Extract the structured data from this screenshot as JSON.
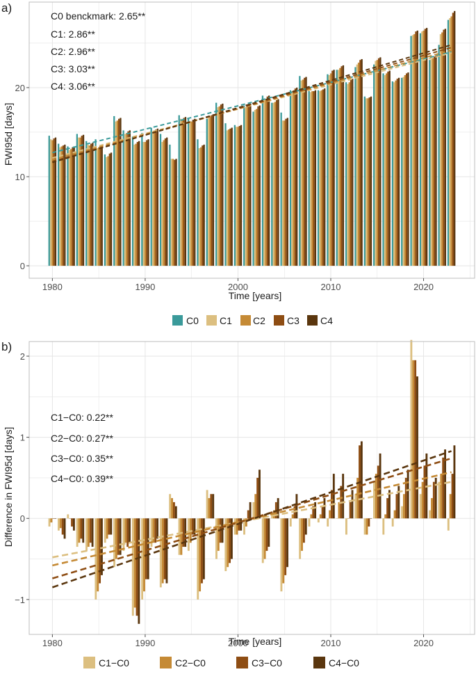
{
  "colors": {
    "C0": "#3a9a9a",
    "C1": "#dcbf80",
    "C2": "#c58a35",
    "C3": "#8e4d13",
    "C4": "#5a360e",
    "grid": "#e5e5e5",
    "frame": "#bdbdbd"
  },
  "chart_data": [
    {
      "panel": "a)",
      "type": "bar",
      "xlabel": "Time [years]",
      "ylabel": "FWI95d [days]",
      "xlim": [
        1977.5,
        2025.5
      ],
      "ylim": [
        -1.4,
        29.6
      ],
      "xticks": [
        1980,
        1990,
        2000,
        2010,
        2020
      ],
      "yticks": [
        0,
        10,
        20
      ],
      "x": [
        1980,
        1981,
        1982,
        1983,
        1984,
        1985,
        1986,
        1987,
        1988,
        1989,
        1990,
        1991,
        1992,
        1993,
        1994,
        1995,
        1996,
        1997,
        1998,
        1999,
        2000,
        2001,
        2002,
        2003,
        2004,
        2005,
        2006,
        2007,
        2008,
        2009,
        2010,
        2011,
        2012,
        2013,
        2014,
        2015,
        2016,
        2017,
        2018,
        2019,
        2020,
        2021,
        2022,
        2023
      ],
      "series": [
        {
          "name": "C0",
          "values": [
            14.6,
            13.7,
            13.4,
            14.8,
            14.0,
            14.2,
            12.5,
            16.8,
            15.2,
            14.5,
            14.9,
            15.5,
            14.8,
            13.6,
            16.9,
            16.5,
            14.2,
            16.5,
            18.3,
            16.0,
            15.8,
            18.0,
            17.3,
            19.1,
            18.3,
            17.2,
            19.7,
            21.3,
            19.6,
            19.7,
            21.5,
            22.0,
            20.6,
            22.3,
            19.0,
            22.6,
            21.6,
            20.7,
            21.1,
            25.8,
            26.1,
            23.1,
            24.8,
            27.6
          ]
        },
        {
          "name": "C1",
          "values": [
            14.2,
            13.3,
            13.0,
            14.4,
            13.6,
            13.2,
            12.2,
            16.2,
            14.8,
            13.6,
            13.9,
            15.1,
            13.9,
            12.0,
            16.5,
            16.1,
            13.2,
            16.6,
            17.8,
            15.2,
            15.6,
            17.8,
            17.5,
            18.6,
            18.3,
            16.3,
            19.6,
            20.8,
            19.5,
            19.6,
            21.4,
            22.0,
            20.4,
            22.6,
            18.8,
            23.0,
            21.4,
            20.6,
            21.2,
            25.9,
            26.3,
            23.2,
            26.0,
            27.8
          ]
        },
        {
          "name": "C2",
          "values": [
            14.1,
            13.4,
            13.1,
            14.4,
            13.5,
            13.3,
            12.3,
            16.3,
            14.9,
            13.7,
            13.9,
            15.2,
            14.1,
            12.0,
            16.4,
            16.2,
            13.3,
            16.7,
            17.9,
            15.3,
            15.6,
            17.9,
            17.6,
            18.7,
            18.4,
            16.3,
            19.7,
            20.9,
            19.6,
            19.7,
            21.6,
            22.2,
            20.6,
            22.8,
            18.8,
            23.1,
            21.6,
            20.8,
            21.4,
            26.0,
            26.4,
            23.3,
            26.2,
            28.0
          ]
        },
        {
          "name": "C3",
          "values": [
            14.3,
            13.5,
            13.3,
            14.6,
            13.7,
            13.5,
            12.6,
            16.5,
            15.1,
            13.9,
            14.1,
            15.3,
            14.3,
            11.9,
            16.6,
            16.4,
            13.5,
            16.9,
            18.1,
            15.4,
            15.7,
            18.1,
            17.9,
            19.0,
            18.6,
            16.5,
            19.9,
            21.1,
            19.6,
            19.8,
            21.9,
            22.4,
            20.9,
            23.1,
            18.9,
            23.3,
            21.8,
            21.0,
            21.6,
            26.3,
            26.6,
            23.5,
            26.5,
            28.4
          ]
        },
        {
          "name": "C4",
          "values": [
            14.4,
            13.6,
            13.4,
            14.7,
            13.8,
            13.6,
            12.7,
            16.6,
            15.2,
            14.0,
            14.2,
            15.4,
            14.4,
            12.0,
            16.7,
            16.5,
            13.6,
            17.0,
            18.2,
            15.5,
            15.8,
            18.2,
            18.0,
            19.1,
            18.7,
            16.6,
            20.0,
            21.2,
            19.7,
            19.9,
            22.0,
            22.5,
            21.0,
            23.2,
            19.0,
            23.4,
            21.9,
            21.1,
            21.7,
            26.4,
            26.7,
            23.6,
            26.6,
            28.6
          ]
        }
      ],
      "trends": [
        {
          "name": "C0",
          "start": 12.7,
          "end": 24.0
        },
        {
          "name": "C1",
          "start": 12.1,
          "end": 23.9
        },
        {
          "name": "C2",
          "start": 11.9,
          "end": 24.2
        },
        {
          "name": "C3",
          "start": 11.7,
          "end": 24.5
        },
        {
          "name": "C4",
          "start": 11.6,
          "end": 24.8
        }
      ],
      "annotations": [
        "C0 benckmark: 2.65**",
        "C1: 2.86**",
        "C2: 2.96**",
        "C3: 3.03**",
        "C4: 3.06**"
      ],
      "legend": [
        "C0",
        "C1",
        "C2",
        "C3",
        "C4"
      ]
    },
    {
      "panel": "b)",
      "type": "bar",
      "xlabel": "Time [years]",
      "ylabel": "Difference in FWI95d [days]",
      "xlim": [
        1977.5,
        2025.5
      ],
      "ylim": [
        -1.43,
        2.18
      ],
      "xticks": [
        1980,
        1990,
        2000,
        2010,
        2020
      ],
      "yticks": [
        -1,
        0,
        1,
        2
      ],
      "x": [
        1980,
        1981,
        1982,
        1983,
        1984,
        1985,
        1986,
        1987,
        1988,
        1989,
        1990,
        1991,
        1992,
        1993,
        1994,
        1995,
        1996,
        1997,
        1998,
        1999,
        2000,
        2001,
        2002,
        2003,
        2004,
        2005,
        2006,
        2007,
        2008,
        2009,
        2010,
        2011,
        2012,
        2013,
        2014,
        2015,
        2016,
        2017,
        2018,
        2019,
        2020,
        2021,
        2022,
        2023
      ],
      "series": [
        {
          "name": "C1-C0",
          "values": [
            -0.1,
            -0.15,
            0.05,
            -0.35,
            -0.4,
            -1.0,
            -0.3,
            -0.6,
            -0.4,
            -1.2,
            -1.0,
            -0.35,
            -0.85,
            0.3,
            -0.45,
            -0.4,
            -1.0,
            0.35,
            -0.5,
            -0.65,
            -0.2,
            -0.2,
            0.2,
            -0.55,
            0.05,
            -0.9,
            -0.1,
            -0.5,
            -0.1,
            -0.05,
            -0.1,
            0.0,
            -0.2,
            0.3,
            -0.2,
            0.45,
            -0.2,
            -0.1,
            0.15,
            2.2,
            0.3,
            0.1,
            0.45,
            -0.15
          ]
        },
        {
          "name": "C2-C0",
          "values": [
            -0.05,
            -0.12,
            0.0,
            -0.3,
            -0.35,
            -0.9,
            -0.25,
            -0.5,
            -0.3,
            -1.1,
            -0.9,
            -0.3,
            -0.8,
            0.25,
            -0.45,
            -0.3,
            -0.9,
            0.25,
            -0.4,
            -0.6,
            -0.2,
            -0.1,
            0.3,
            -0.5,
            0.1,
            -0.8,
            0.05,
            -0.4,
            0.05,
            0.05,
            0.1,
            0.2,
            0.0,
            0.5,
            -0.2,
            0.55,
            0.05,
            0.1,
            0.3,
            1.95,
            0.45,
            0.25,
            0.55,
            0.3
          ]
        },
        {
          "name": "C3-C0",
          "values": [
            0.0,
            -0.2,
            -0.1,
            -0.25,
            -0.3,
            -0.8,
            -0.2,
            -0.45,
            -0.35,
            -1.2,
            -0.75,
            -0.3,
            -0.75,
            0.2,
            -0.35,
            -0.2,
            -0.8,
            0.3,
            -0.3,
            -0.55,
            -0.15,
            0.1,
            0.5,
            -0.4,
            0.2,
            -0.7,
            0.15,
            -0.3,
            0.15,
            0.15,
            0.35,
            0.4,
            0.2,
            0.9,
            -0.1,
            0.65,
            0.25,
            0.3,
            0.5,
            1.95,
            0.65,
            0.45,
            0.75,
            0.55
          ]
        },
        {
          "name": "C4-C0",
          "values": [
            0.0,
            -0.25,
            -0.15,
            -0.3,
            -0.35,
            -0.7,
            -0.2,
            -0.45,
            -0.3,
            -1.3,
            -0.75,
            -0.25,
            -0.8,
            0.15,
            -0.35,
            -0.2,
            -0.75,
            0.3,
            -0.3,
            -0.5,
            -0.15,
            0.2,
            0.6,
            -0.35,
            0.25,
            -0.6,
            0.3,
            -0.2,
            0.2,
            0.25,
            0.55,
            0.55,
            0.35,
            0.95,
            0.0,
            0.8,
            0.35,
            0.4,
            0.6,
            1.75,
            0.8,
            0.5,
            0.85,
            0.9
          ]
        }
      ],
      "trends": [
        {
          "name": "C1-C0",
          "start": -0.48,
          "end": 0.45
        },
        {
          "name": "C2-C0",
          "start": -0.58,
          "end": 0.57
        },
        {
          "name": "C3-C0",
          "start": -0.74,
          "end": 0.74
        },
        {
          "name": "C4-C0",
          "start": -0.85,
          "end": 0.83
        }
      ],
      "annotations": [
        "C1−C0: 0.22**",
        "C2−C0: 0.27**",
        "C3−C0: 0.35**",
        "C4−C0: 0.39**"
      ],
      "legend": [
        "C1−C0",
        "C2−C0",
        "C3−C0",
        "C4−C0"
      ]
    }
  ]
}
